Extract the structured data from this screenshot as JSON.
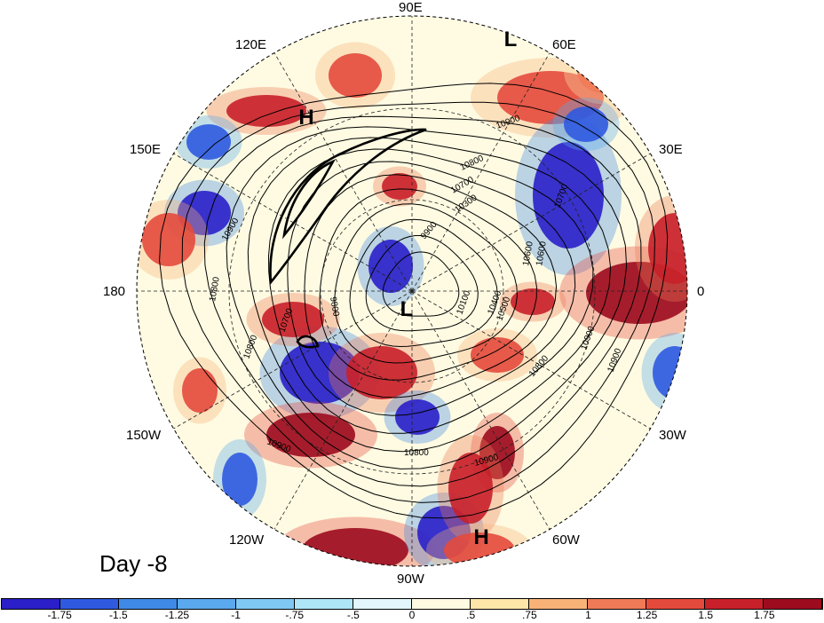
{
  "map": {
    "day_label": "Day -8",
    "longitude_labels": [
      {
        "text": "90E",
        "pos": "top"
      },
      {
        "text": "60E",
        "pos": "top-right"
      },
      {
        "text": "120E",
        "pos": "top-left"
      },
      {
        "text": "30E",
        "pos": "right-upper"
      },
      {
        "text": "150E",
        "pos": "left-upper"
      },
      {
        "text": "0",
        "pos": "right"
      },
      {
        "text": "180",
        "pos": "left"
      },
      {
        "text": "30W",
        "pos": "right-lower"
      },
      {
        "text": "150W",
        "pos": "left-lower"
      },
      {
        "text": "60W",
        "pos": "bottom-right"
      },
      {
        "text": "120W",
        "pos": "bottom-left"
      },
      {
        "text": "90W",
        "pos": "bottom"
      }
    ],
    "pressure_markers": [
      "H",
      "L",
      "L",
      "H"
    ],
    "contour_labels": [
      "10900",
      "10800",
      "10700",
      "10500",
      "10400",
      "10300",
      "10100",
      "9900",
      "9800",
      "10600",
      "10900",
      "10800",
      "10700",
      "10800",
      "10900",
      "10900",
      "10800",
      "10900",
      "10700",
      "10600",
      "10800",
      "10900"
    ]
  },
  "colorbar": {
    "labels": [
      "-1.75",
      "-1.5",
      "-1.25",
      "-1",
      "-.75",
      "-.5",
      "0",
      ".5",
      ".75",
      "1",
      "1.25",
      "1.5",
      "1.75"
    ],
    "colors": [
      "#2a1fc8",
      "#2f5ae0",
      "#3f8ae6",
      "#5aa8ee",
      "#80c8f4",
      "#aee6f8",
      "#e2f6fc",
      "#fefbe2",
      "#fde6a8",
      "#f8b277",
      "#ef7a57",
      "#e44a3c",
      "#c8202a",
      "#9c0b1e"
    ]
  }
}
